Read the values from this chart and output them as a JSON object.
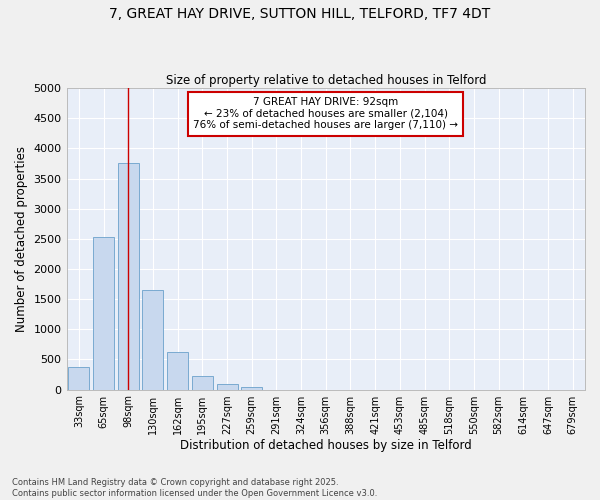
{
  "title_line1": "7, GREAT HAY DRIVE, SUTTON HILL, TELFORD, TF7 4DT",
  "title_line2": "Size of property relative to detached houses in Telford",
  "xlabel": "Distribution of detached houses by size in Telford",
  "ylabel": "Number of detached properties",
  "categories": [
    "33sqm",
    "65sqm",
    "98sqm",
    "130sqm",
    "162sqm",
    "195sqm",
    "227sqm",
    "259sqm",
    "291sqm",
    "324sqm",
    "356sqm",
    "388sqm",
    "421sqm",
    "453sqm",
    "485sqm",
    "518sqm",
    "550sqm",
    "582sqm",
    "614sqm",
    "647sqm",
    "679sqm"
  ],
  "values": [
    380,
    2530,
    3760,
    1650,
    620,
    230,
    100,
    50,
    0,
    0,
    0,
    0,
    0,
    0,
    0,
    0,
    0,
    0,
    0,
    0,
    0
  ],
  "bar_color": "#c8d8ee",
  "bar_edge_color": "#7aaad0",
  "background_color": "#e8eef8",
  "grid_color": "#ffffff",
  "vline_x": 2,
  "vline_color": "#cc0000",
  "annotation_text": "7 GREAT HAY DRIVE: 92sqm\n← 23% of detached houses are smaller (2,104)\n76% of semi-detached houses are larger (7,110) →",
  "annotation_box_color": "#cc0000",
  "ylim": [
    0,
    5000
  ],
  "yticks": [
    0,
    500,
    1000,
    1500,
    2000,
    2500,
    3000,
    3500,
    4000,
    4500,
    5000
  ],
  "footnote": "Contains HM Land Registry data © Crown copyright and database right 2025.\nContains public sector information licensed under the Open Government Licence v3.0."
}
